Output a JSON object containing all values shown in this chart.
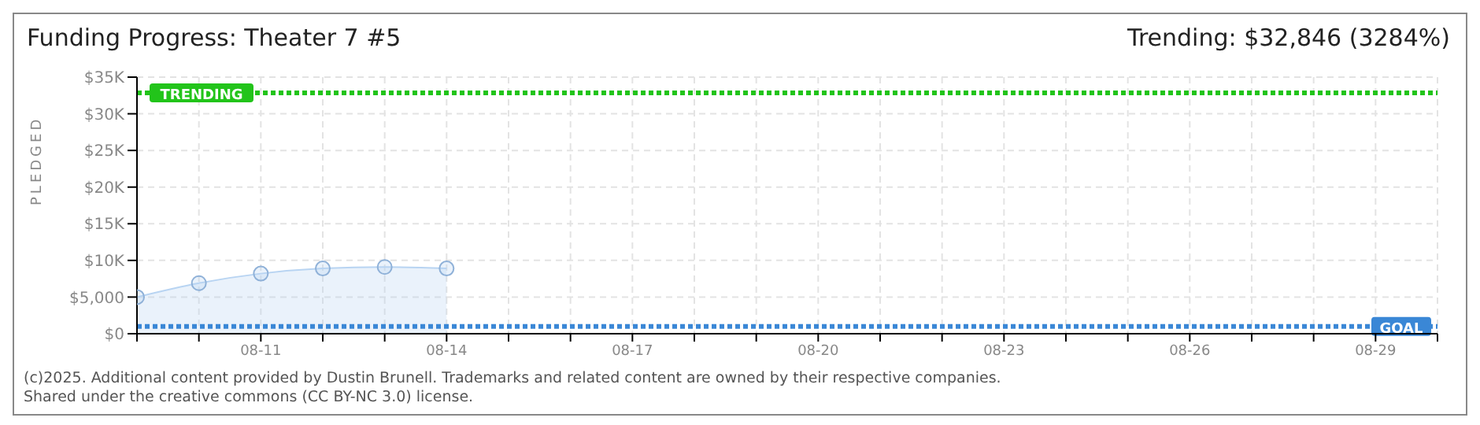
{
  "chart_data": {
    "type": "area",
    "title": "Funding Progress: Theater 7 #5",
    "subtitle": "Trending: $32,846 (3284%)",
    "ylabel": "PLEDGED",
    "categories": [
      null,
      null,
      "08-11",
      null,
      null,
      "08-14",
      null,
      null,
      "08-17",
      null,
      null,
      "08-20",
      null,
      null,
      "08-23",
      null,
      null,
      "08-26",
      null,
      null,
      "08-29",
      null
    ],
    "series": [
      {
        "color": "#b8d4f2",
        "values": [
          5000,
          6900,
          8200,
          8900,
          9100,
          8900,
          null,
          null,
          null,
          null,
          null,
          null,
          null,
          null,
          null,
          null,
          null,
          null,
          null,
          null,
          null,
          null
        ]
      }
    ],
    "ylim": [
      0,
      35000
    ],
    "yticks": [
      {
        "value": 0,
        "label": "$0"
      },
      {
        "value": 5000,
        "label": "$5,000"
      },
      {
        "value": 10000,
        "label": "$10K"
      },
      {
        "value": 15000,
        "label": "$15K"
      },
      {
        "value": 20000,
        "label": "$20K"
      },
      {
        "value": 25000,
        "label": "$25K"
      },
      {
        "value": 30000,
        "label": "$30K"
      },
      {
        "value": 35000,
        "label": "$35K"
      }
    ],
    "ref_lines": [
      {
        "axis": "y",
        "value": 32846,
        "label": "TRENDING",
        "color": "#22c41a",
        "line_style": "dotted"
      },
      {
        "axis": "y",
        "value": 1000,
        "label": "GOAL",
        "color": "#3a87d6",
        "line_style": "dotted"
      }
    ],
    "grid": true,
    "marker": "circle",
    "legend": false,
    "annotations": [
      "(c)2025. Additional content provided by Dustin Brunell. Trademarks and related content are owned by their respective companies.",
      "Shared under the creative commons (CC BY-NC 3.0) license."
    ]
  }
}
